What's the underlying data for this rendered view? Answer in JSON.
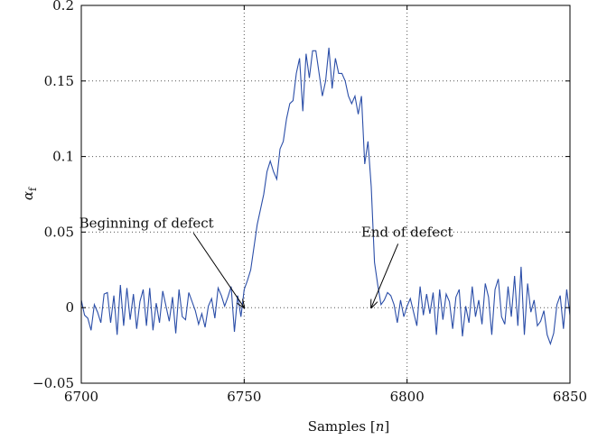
{
  "chart_data": {
    "type": "line",
    "xlabel_main": "Samples ",
    "xlabel_open": "[",
    "xlabel_var": "n",
    "xlabel_close": "]",
    "ylabel_main": "α",
    "ylabel_sub": "f",
    "xlim": [
      6700,
      6850
    ],
    "ylim": [
      -0.05,
      0.2
    ],
    "xticks": [
      6700,
      6750,
      6800,
      6850
    ],
    "xtick_labels": [
      "6700",
      "6750",
      "6800",
      "6850"
    ],
    "yticks": [
      -0.05,
      0,
      0.05,
      0.1,
      0.15,
      0.2
    ],
    "ytick_labels": [
      "−0.05",
      "0",
      "0.05",
      "0.1",
      "0.15",
      "0.2"
    ],
    "grid": true,
    "series": [
      {
        "color": "#2b4ea8",
        "x": [
          6700,
          6701,
          6702,
          6703,
          6704,
          6705,
          6706,
          6707,
          6708,
          6709,
          6710,
          6711,
          6712,
          6713,
          6714,
          6715,
          6716,
          6717,
          6718,
          6719,
          6720,
          6721,
          6722,
          6723,
          6724,
          6725,
          6726,
          6727,
          6728,
          6729,
          6730,
          6731,
          6732,
          6733,
          6734,
          6735,
          6736,
          6737,
          6738,
          6739,
          6740,
          6741,
          6742,
          6743,
          6744,
          6745,
          6746,
          6747,
          6748,
          6749,
          6750,
          6751,
          6752,
          6753,
          6754,
          6755,
          6756,
          6757,
          6758,
          6759,
          6760,
          6761,
          6762,
          6763,
          6764,
          6765,
          6766,
          6767,
          6768,
          6769,
          6770,
          6771,
          6772,
          6773,
          6774,
          6775,
          6776,
          6777,
          6778,
          6779,
          6780,
          6781,
          6782,
          6783,
          6784,
          6785,
          6786,
          6787,
          6788,
          6789,
          6790,
          6791,
          6792,
          6793,
          6794,
          6795,
          6796,
          6797,
          6798,
          6799,
          6800,
          6801,
          6802,
          6803,
          6804,
          6805,
          6806,
          6807,
          6808,
          6809,
          6810,
          6811,
          6812,
          6813,
          6814,
          6815,
          6816,
          6817,
          6818,
          6819,
          6820,
          6821,
          6822,
          6823,
          6824,
          6825,
          6826,
          6827,
          6828,
          6829,
          6830,
          6831,
          6832,
          6833,
          6834,
          6835,
          6836,
          6837,
          6838,
          6839,
          6840,
          6841,
          6842,
          6843,
          6844,
          6845,
          6846,
          6847,
          6848,
          6849,
          6850
        ],
        "y": [
          0.005,
          -0.005,
          -0.007,
          -0.015,
          0.002,
          -0.003,
          -0.01,
          0.009,
          0.01,
          -0.01,
          0.008,
          -0.018,
          0.015,
          -0.012,
          0.013,
          -0.008,
          0.009,
          -0.014,
          0.004,
          0.012,
          -0.012,
          0.013,
          -0.015,
          0.003,
          -0.01,
          0.011,
          0.001,
          -0.009,
          0.007,
          -0.017,
          0.012,
          -0.006,
          -0.008,
          0.01,
          0.004,
          -0.002,
          -0.011,
          -0.004,
          -0.013,
          0.001,
          0.006,
          -0.007,
          0.013,
          0.008,
          0.001,
          0.007,
          0.014,
          -0.016,
          0.008,
          -0.006,
          0.012,
          0.018,
          0.025,
          0.04,
          0.055,
          0.065,
          0.075,
          0.09,
          0.097,
          0.09,
          0.085,
          0.105,
          0.11,
          0.125,
          0.135,
          0.137,
          0.155,
          0.165,
          0.13,
          0.168,
          0.152,
          0.17,
          0.17,
          0.155,
          0.14,
          0.15,
          0.172,
          0.145,
          0.165,
          0.155,
          0.155,
          0.15,
          0.14,
          0.135,
          0.14,
          0.128,
          0.14,
          0.095,
          0.11,
          0.08,
          0.03,
          0.015,
          0.002,
          0.005,
          0.01,
          0.008,
          0.002,
          -0.01,
          0.005,
          -0.006,
          0.001,
          0.006,
          -0.003,
          -0.012,
          0.014,
          -0.005,
          0.009,
          -0.004,
          0.01,
          -0.018,
          0.012,
          -0.008,
          0.009,
          0.004,
          -0.014,
          0.007,
          0.012,
          -0.019,
          0.001,
          -0.01,
          0.014,
          -0.006,
          0.005,
          -0.011,
          0.016,
          0.007,
          -0.018,
          0.012,
          0.019,
          -0.006,
          -0.011,
          0.014,
          -0.006,
          0.021,
          -0.012,
          0.027,
          -0.018,
          0.016,
          -0.003,
          0.005,
          -0.012,
          -0.009,
          -0.002,
          -0.018,
          -0.024,
          -0.017,
          0.002,
          0.008,
          -0.014,
          0.012,
          -0.005
        ]
      }
    ],
    "annotations": [
      {
        "text": "Beginning of defect",
        "x": 6750,
        "y": 0.0,
        "text_x": 6720,
        "text_y": 0.053
      },
      {
        "text": "End of defect",
        "x": 6789,
        "y": 0.0,
        "text_x": 6800,
        "text_y": 0.047
      }
    ]
  }
}
